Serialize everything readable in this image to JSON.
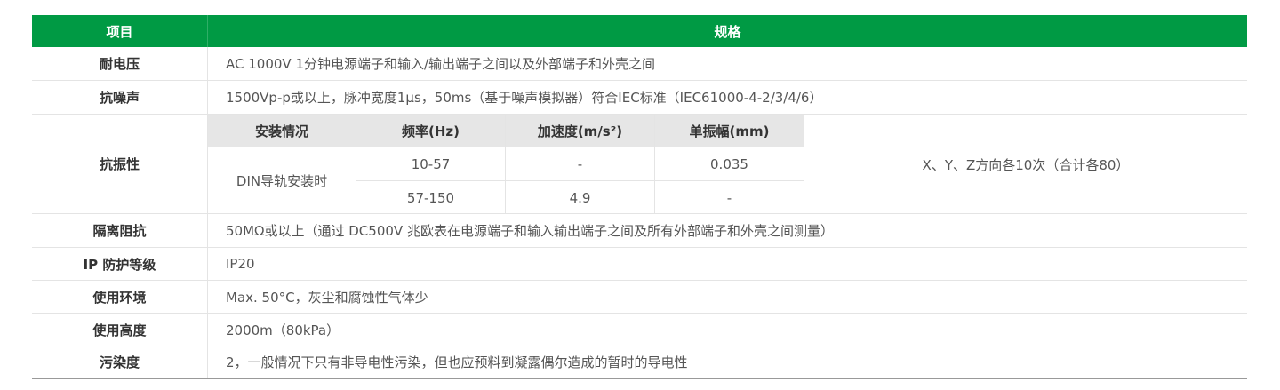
{
  "header": {
    "col1": "项目",
    "col2": "规格"
  },
  "rows": [
    {
      "label": "耐电压",
      "value": "AC 1000V 1分钟电源端子和输入/输出端子之间以及外部端子和外壳之间"
    },
    {
      "label": "抗噪声",
      "value": "1500Vp-p或以上，脉冲宽度1μs，50ms（基于噪声模拟器）符合IEC标准（IEC61000-4-2/3/4/6）"
    }
  ],
  "vibration": {
    "label": "抗振性",
    "headers": [
      "安装情况",
      "频率(Hz)",
      "加速度(m/s²)",
      "单振幅(mm)"
    ],
    "mount": "DIN导轨安装时",
    "rows": [
      {
        "freq": "10-57",
        "accel": "-",
        "amp": "0.035"
      },
      {
        "freq": "57-150",
        "accel": "4.9",
        "amp": "-"
      }
    ],
    "note": "X、Y、Z方向各10次（合计各80）"
  },
  "rows2": [
    {
      "label": "隔离阻抗",
      "value": "50MΩ或以上（通过 DC500V 兆欧表在电源端子和输入输出端子之间及所有外部端子和外壳之间测量）"
    },
    {
      "label": "IP 防护等级",
      "value": "IP20"
    },
    {
      "label": "使用环境",
      "value": "Max. 50°C，灰尘和腐蚀性气体少"
    },
    {
      "label": "使用高度",
      "value": "2000m（80kPa）"
    },
    {
      "label": "污染度",
      "value": "2，一般情况下只有非导电性污染，但也应预料到凝露偶尔造成的暂时的导电性"
    }
  ],
  "colors": {
    "header_bg": "#009a44",
    "subheader_bg": "#e6e6e6"
  }
}
